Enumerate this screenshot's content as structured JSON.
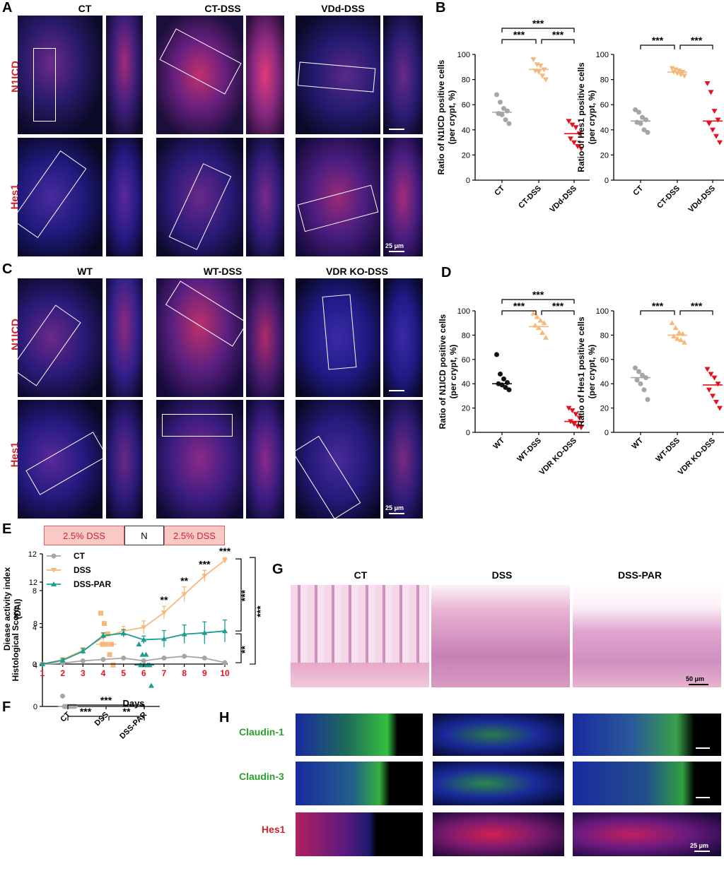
{
  "panels": {
    "A": {
      "letter": "A",
      "cols": [
        "CT",
        "CT-DSS",
        "VDd-DSS"
      ],
      "rows": [
        "N1ICD",
        "Hes1"
      ],
      "scale": "25 μm"
    },
    "B": {
      "letter": "B"
    },
    "C": {
      "letter": "C",
      "cols": [
        "WT",
        "WT-DSS",
        "VDR KO-DSS"
      ],
      "rows": [
        "N1ICD",
        "Hes1"
      ],
      "scale": "25 μm"
    },
    "D": {
      "letter": "D"
    },
    "E": {
      "letter": "E",
      "regimen": [
        "2.5% DSS",
        "N",
        "2.5% DSS"
      ]
    },
    "F": {
      "letter": "F"
    },
    "G": {
      "letter": "G",
      "cols": [
        "CT",
        "DSS",
        "DSS-PAR"
      ],
      "scale": "50 μm"
    },
    "H": {
      "letter": "H",
      "rows": [
        "Claudin-1",
        "Claudin-3",
        "Hes1"
      ],
      "row_colors": [
        "#2aa02a",
        "#2aa02a",
        "#d2232a"
      ],
      "scale": "25 μm"
    }
  },
  "colors": {
    "ct": "#a6a6a6",
    "dss": "#f5b97c",
    "vdd": "#e8101c",
    "black": "#111111",
    "green": "#1a9e8f",
    "day_red": "#e8101c"
  },
  "chart_data": [
    {
      "id": "B-left",
      "type": "scatter",
      "subtype": "dot-plot",
      "ylabel": "Ratio of N1ICD positive cells (per crypt, %)",
      "categories": [
        "CT",
        "CT-DSS",
        "VDd-DSS"
      ],
      "ylim": [
        0,
        100
      ],
      "yticks": [
        0,
        20,
        40,
        60,
        80,
        100
      ],
      "series": [
        {
          "values": [
            68,
            62,
            57,
            55,
            53,
            52,
            48,
            45
          ],
          "mean": 54
        },
        {
          "values": [
            96,
            92,
            91,
            88,
            87,
            86,
            83,
            80
          ],
          "mean": 88
        },
        {
          "values": [
            47,
            44,
            42,
            37,
            33,
            30,
            27,
            25
          ],
          "mean": 37
        }
      ],
      "sig": [
        {
          "pair": [
            0,
            1
          ],
          "label": "***"
        },
        {
          "pair": [
            1,
            2
          ],
          "label": "***"
        },
        {
          "pair": [
            0,
            2
          ],
          "label": "***"
        }
      ]
    },
    {
      "id": "B-right",
      "type": "scatter",
      "subtype": "dot-plot",
      "ylabel": "Ratio of Hes1 positive cells (per crypt, %)",
      "categories": [
        "CT",
        "CT-DSS",
        "VDd-DSS"
      ],
      "ylim": [
        0,
        100
      ],
      "yticks": [
        0,
        20,
        40,
        60,
        80,
        100
      ],
      "series": [
        {
          "values": [
            56,
            54,
            50,
            48,
            46,
            45,
            40,
            38
          ],
          "mean": 47
        },
        {
          "values": [
            89,
            88,
            87,
            86,
            86,
            85,
            84,
            83
          ],
          "mean": 86
        },
        {
          "values": [
            77,
            70,
            55,
            48,
            45,
            40,
            35,
            30
          ],
          "mean": 47
        }
      ],
      "sig": [
        {
          "pair": [
            0,
            1
          ],
          "label": "***"
        },
        {
          "pair": [
            1,
            2
          ],
          "label": "***"
        }
      ]
    },
    {
      "id": "D-left",
      "type": "scatter",
      "subtype": "dot-plot",
      "ylabel": "Ratio of N1ICD positive cells (per crypt, %)",
      "categories": [
        "WT",
        "WT-DSS",
        "VDR KO-DSS"
      ],
      "ylim": [
        0,
        100
      ],
      "yticks": [
        0,
        20,
        40,
        60,
        80,
        100
      ],
      "series": [
        {
          "values": [
            64,
            48,
            44,
            41,
            40,
            39,
            37,
            35
          ],
          "mean": 40
        },
        {
          "values": [
            98,
            95,
            92,
            90,
            88,
            86,
            82,
            78
          ],
          "mean": 87
        },
        {
          "values": [
            20,
            18,
            15,
            12,
            9,
            7,
            5,
            4
          ],
          "mean": 9
        }
      ],
      "sig": [
        {
          "pair": [
            0,
            1
          ],
          "label": "***"
        },
        {
          "pair": [
            1,
            2
          ],
          "label": "***"
        },
        {
          "pair": [
            0,
            2
          ],
          "label": "***"
        }
      ]
    },
    {
      "id": "D-right",
      "type": "scatter",
      "subtype": "dot-plot",
      "ylabel": "Ratio of Hes1 positive cells (per crypt, %)",
      "categories": [
        "WT",
        "WT-DSS",
        "VDR KO-DSS"
      ],
      "ylim": [
        0,
        100
      ],
      "yticks": [
        0,
        20,
        40,
        60,
        80,
        100
      ],
      "series": [
        {
          "values": [
            53,
            50,
            47,
            45,
            43,
            40,
            35,
            27
          ],
          "mean": 45
        },
        {
          "values": [
            90,
            86,
            82,
            81,
            79,
            77,
            76,
            74
          ],
          "mean": 80
        },
        {
          "values": [
            52,
            48,
            45,
            40,
            35,
            30,
            25,
            20
          ],
          "mean": 39
        }
      ],
      "sig": [
        {
          "pair": [
            0,
            1
          ],
          "label": "***"
        },
        {
          "pair": [
            1,
            2
          ],
          "label": "***"
        }
      ]
    },
    {
      "id": "E",
      "type": "line",
      "xlabel": "Days",
      "ylabel": "Diease activity index (DAI)",
      "x": [
        1,
        2,
        3,
        4,
        5,
        6,
        7,
        8,
        9,
        10
      ],
      "ylim": [
        0,
        12
      ],
      "yticks": [
        0,
        4,
        8,
        12
      ],
      "series": [
        {
          "name": "CT",
          "values": [
            0,
            0.1,
            0.35,
            0.5,
            0.65,
            0.35,
            0.65,
            0.85,
            0.65,
            0.15
          ],
          "err": [
            0.05,
            0.05,
            0.1,
            0.1,
            0.1,
            0.1,
            0.1,
            0.1,
            0.1,
            0.05
          ]
        },
        {
          "name": "DSS",
          "values": [
            0,
            0.5,
            1.5,
            2.9,
            3.6,
            4.0,
            5.6,
            7.6,
            9.6,
            11.3
          ],
          "err": [
            0.1,
            0.2,
            0.3,
            0.4,
            0.5,
            0.7,
            0.7,
            0.8,
            0.6,
            0.3
          ]
        },
        {
          "name": "DSS-PAR",
          "values": [
            0,
            0.4,
            1.4,
            3.1,
            3.35,
            2.65,
            2.75,
            3.25,
            3.4,
            3.6
          ],
          "err": [
            0.1,
            0.2,
            0.3,
            0.3,
            0.4,
            0.4,
            0.9,
            1.0,
            1.2,
            1.2
          ]
        }
      ],
      "point_sig": [
        {
          "x": 7,
          "label": "**"
        },
        {
          "x": 8,
          "label": "**"
        },
        {
          "x": 9,
          "label": "***"
        },
        {
          "x": 10,
          "label": "***"
        }
      ],
      "bracket_sig": [
        {
          "label": "***",
          "between": "DSS vs DSS-PAR"
        },
        {
          "label": "**",
          "between": "DSS-PAR vs CT"
        },
        {
          "label": "***",
          "between": "DSS vs CT"
        }
      ]
    },
    {
      "id": "F",
      "type": "scatter",
      "subtype": "dot-plot",
      "ylabel": "Histological Score",
      "categories": [
        "CT",
        "DSS",
        "DSS-PAR"
      ],
      "ylim": [
        0,
        12
      ],
      "yticks": [
        0,
        4,
        8,
        12
      ],
      "series": [
        {
          "values": [
            1,
            0,
            0,
            0,
            0,
            0,
            0,
            0
          ],
          "mean": 0
        },
        {
          "values": [
            9,
            8,
            7,
            6,
            6,
            6,
            5,
            4
          ],
          "mean": 6
        },
        {
          "values": [
            6,
            5,
            5,
            4,
            4,
            4,
            4,
            2
          ],
          "mean": 4
        }
      ],
      "sig": [
        {
          "pair": [
            0,
            1
          ],
          "label": "***"
        },
        {
          "pair": [
            1,
            2
          ],
          "label": "**"
        },
        {
          "pair": [
            0,
            2
          ],
          "label": "***"
        }
      ]
    }
  ]
}
